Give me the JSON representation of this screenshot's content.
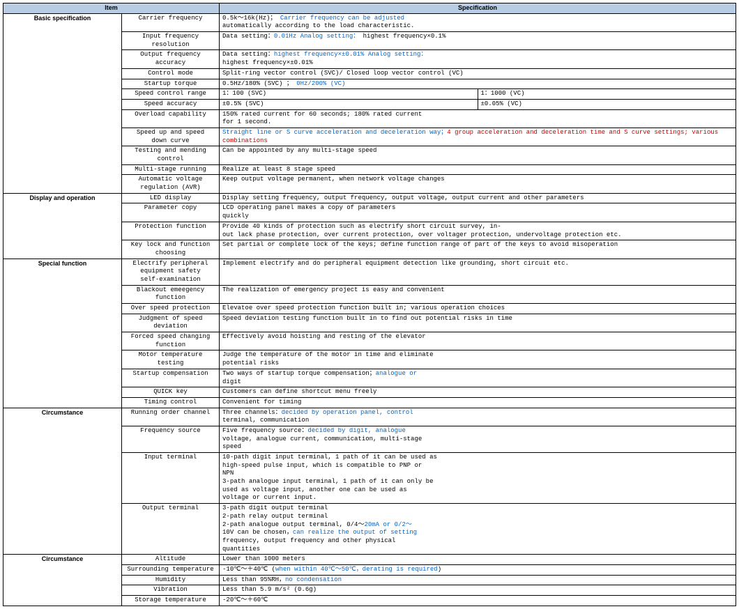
{
  "header": {
    "item": "Item",
    "spec": "Specification"
  },
  "colors": {
    "header_bg": "#b8cce4",
    "blue": "#0066cc",
    "red": "#cc0000"
  },
  "sections": [
    {
      "category": "Basic specification",
      "rows": [
        {
          "item": "Carrier frequency",
          "spec": [
            {
              "t": "0.5k～16k(Hz)；"
            },
            {
              "t": " Carrier frequency can be adjusted",
              "c": "blue"
            },
            {
              "t": "\nautomatically  according to the load characteristic."
            }
          ]
        },
        {
          "item": "Input frequency resolution",
          "spec": [
            {
              "t": "Data setting："
            },
            {
              "t": "0.01Hz Analog setting：",
              "c": "blue"
            },
            {
              "t": " highest frequency×0.1%"
            }
          ]
        },
        {
          "item": "Output frequency\naccuracy",
          "spec": [
            {
              "t": "Data setting："
            },
            {
              "t": "highest frequency×±0.01% Analog setting：",
              "c": "blue"
            },
            {
              "t": "\nhighest frequency×±0.01%"
            }
          ]
        },
        {
          "item": "Control mode",
          "spec": [
            {
              "t": " Split-ring vector control (SVC)/ Closed loop vector control (VC)"
            }
          ]
        },
        {
          "item": "Startup torque",
          "spec": [
            {
              "t": "0.5Hz/180% (SVC) ；"
            },
            {
              "t": " 0Hz/200% (VC)",
              "c": "blue"
            }
          ]
        },
        {
          "item": "Speed control range",
          "split": true,
          "spec_a": "1：100 (SVC)",
          "spec_b": "1：1000 (VC)"
        },
        {
          "item": "Speed accuracy",
          "split": true,
          "spec_a": "±0.5% (SVC)",
          "spec_b": "±0.05% (VC)"
        },
        {
          "item": "Overload capability",
          "spec": [
            {
              "t": " 150% rated current for 60 seconds; 180% rated current\nfor 1 second."
            }
          ]
        },
        {
          "item": "Speed up and speed\ndown curve",
          "spec": [
            {
              "t": "Straight line or S curve acceleration and deceleration way；",
              "c": "blue"
            },
            {
              "t": "4 group acceleration and deceleration time and S curve settings; various combinations",
              "c": "red"
            }
          ]
        },
        {
          "item": "Testing and mending\ncontrol",
          "spec": [
            {
              "t": " Can be appointed by any multi-stage speed"
            }
          ]
        },
        {
          "item": "Multi-stage running",
          "spec": [
            {
              "t": "Realize at least 8 stage speed"
            }
          ]
        },
        {
          "item": "Automatic voltage\nregulation (AVR)",
          "spec": [
            {
              "t": "Keep output voltage permanent, when network voltage changes"
            }
          ]
        }
      ]
    },
    {
      "category": "Display and operation",
      "rows": [
        {
          "item": "LED display",
          "spec": [
            {
              "t": "Display setting frequency, output frequency, output voltage, output current and other parameters"
            }
          ]
        },
        {
          "item": "Parameter copy",
          "spec": [
            {
              "t": "LCD operating panel makes a copy of parameters\nquickly"
            }
          ]
        },
        {
          "item": "Protection function",
          "spec": [
            {
              "t": "Provide      40      kinds      of       protection       such      as       electrify       short       circuit       survey,       in-\nout lack phase protection, over current protection, over voltager protection, undervoltage protection etc."
            }
          ]
        },
        {
          "item": "Key lock and function\nchoosing",
          "spec": [
            {
              "t": "Set partial or complete lock of the keys; define function range of part of the keys to avoid misoperation"
            }
          ]
        }
      ]
    },
    {
      "category": "Special function",
      "rows": [
        {
          "item": "Electrify peripheral\nequipment safety\nself-examination",
          "spec": [
            {
              "t": "Implement electrify and do peripheral equipment detection like grounding, short circuit etc."
            }
          ]
        },
        {
          "item": "Blackout emeegency\nfunction",
          "spec": [
            {
              "t": "The realization of emergency project is easy and convenient"
            }
          ]
        },
        {
          "item": "Over speed protection",
          "spec": [
            {
              "t": "Elevatoe over speed protection function built in; various operation choices"
            }
          ]
        },
        {
          "item": "Judgment of speed\ndeviation",
          "spec": [
            {
              "t": "Speed deviation testing function built in to find out potential risks in time"
            }
          ]
        },
        {
          "item": "Forced speed changing function",
          "spec": [
            {
              "t": "Effectively avoid hoisting and resting of the elevator"
            }
          ]
        },
        {
          "item": "Motor temperature testing",
          "spec": [
            {
              "t": "Judge the temperature of the motor in time and eliminate\npotential risks"
            }
          ]
        },
        {
          "item": "Startup compensation",
          "spec": [
            {
              "t": "Two ways of startup torque compensation；"
            },
            {
              "t": "analogue or",
              "c": "blue"
            },
            {
              "t": "\ndigit"
            }
          ]
        },
        {
          "item": "QUICK key",
          "spec": [
            {
              "t": "Customers can define shortcut menu freely"
            }
          ]
        },
        {
          "item": "Timing control",
          "spec": [
            {
              "t": "Convenient for timing"
            }
          ]
        }
      ]
    },
    {
      "category": "Circumstance",
      "rows": [
        {
          "item": "Running order channel",
          "spec": [
            {
              "t": "Three channels："
            },
            {
              "t": "decided by operation panel, control",
              "c": "blue"
            },
            {
              "t": "\nterminal, communication"
            }
          ]
        },
        {
          "item": "Frequency source",
          "spec": [
            {
              "t": "Five frequency source："
            },
            {
              "t": "decided by digit, analogue",
              "c": "blue"
            },
            {
              "t": "\nvoltage, analogue current, communication, multi-stage\nspeed"
            }
          ]
        },
        {
          "item": "Input terminal",
          "spec": [
            {
              "t": "10-path digit input terminal, 1 path of it can be used as\nhigh-speed pulse input, which is compatible to PNP or\nNPN\n3-path analogue input terminal, 1 path of it can only be\nused as voltage input, another one can be used as\nvoltage or current input."
            }
          ]
        },
        {
          "item": "Output terminal",
          "spec": [
            {
              "t": "3-path digit output terminal\n2-path relay output terminal\n2-path analogue output terminal, 0/4～"
            },
            {
              "t": "20mA or 0/2～",
              "c": "blue"
            },
            {
              "t": "\n10V can be chosen，"
            },
            {
              "t": "can realize the output of setting",
              "c": "blue"
            },
            {
              "t": "\nfrequency, output frequency and other physical\nquantities"
            }
          ]
        }
      ]
    },
    {
      "category": "Circumstance",
      "rows": [
        {
          "item": "Altitude",
          "spec": [
            {
              "t": "Lower than 1000 meters"
            }
          ]
        },
        {
          "item": "Surrounding temperature",
          "spec": [
            {
              "t": "-10℃～＋40℃ ("
            },
            {
              "t": "when within 40℃～50℃，derating is required",
              "c": "blue"
            },
            {
              "t": ")"
            }
          ]
        },
        {
          "item": "Humidity",
          "spec": [
            {
              "t": "Less than 95%RH，"
            },
            {
              "t": "no condensation",
              "c": "blue"
            }
          ]
        },
        {
          "item": "Vibration",
          "spec": [
            {
              "t": "Less than 5.9 m/s² (0.6g)"
            }
          ]
        },
        {
          "item": "Storage temperature",
          "spec": [
            {
              "t": "-20℃～＋60℃"
            }
          ]
        }
      ]
    }
  ]
}
